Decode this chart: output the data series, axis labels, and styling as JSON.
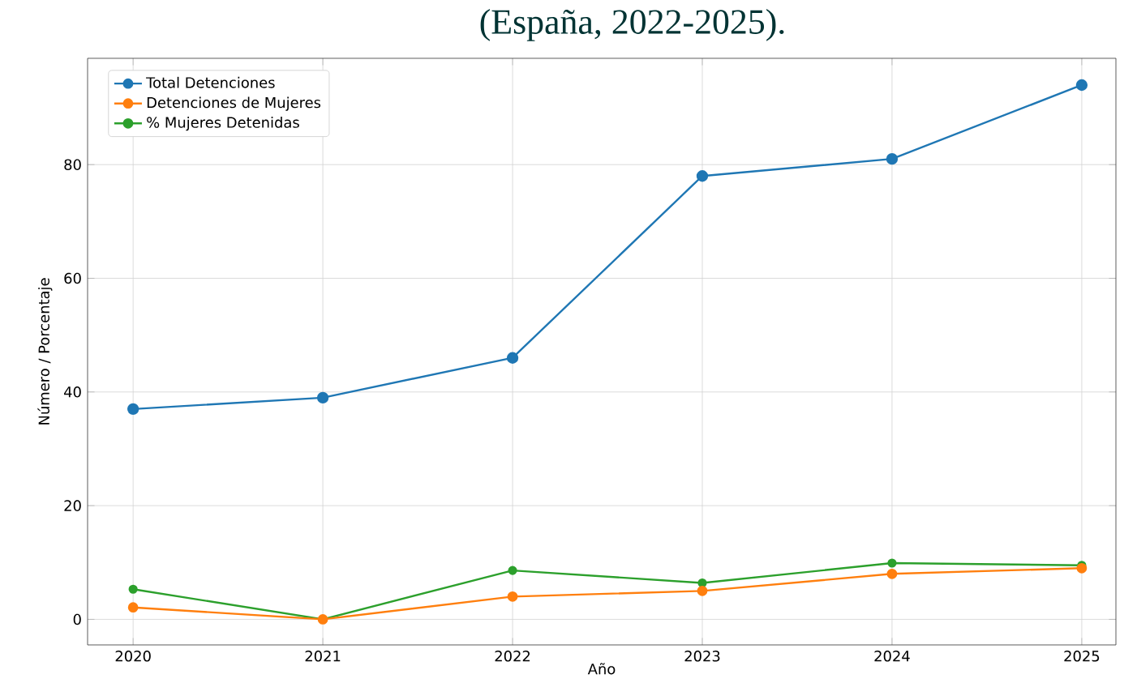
{
  "chart_data": {
    "type": "line",
    "title": "(España, 2022-2025).",
    "xlabel": "Año",
    "ylabel": "Número / Porcentaje",
    "x": [
      2020,
      2021,
      2022,
      2023,
      2024,
      2025
    ],
    "series": [
      {
        "name": "Total Detenciones",
        "color": "#1f77b4",
        "values": [
          37,
          39,
          46,
          78,
          81,
          94
        ]
      },
      {
        "name": "Detenciones de Mujeres",
        "color": "#ff7f0e",
        "values": [
          2.1,
          0,
          4,
          5,
          8,
          9
        ]
      },
      {
        "name": "% Mujeres Detenidas",
        "color": "#2ca02c",
        "values": [
          5.3,
          0,
          8.6,
          6.4,
          9.9,
          9.5
        ]
      }
    ],
    "xlim": [
      2019.76,
      2025.18
    ],
    "ylim": [
      -4.5,
      98.7
    ],
    "xticks": [
      2020,
      2021,
      2022,
      2023,
      2024,
      2025
    ],
    "yticks": [
      0,
      20,
      40,
      60,
      80
    ],
    "grid": true,
    "legend": "top left",
    "marker": "circle",
    "line_style": "solid"
  }
}
